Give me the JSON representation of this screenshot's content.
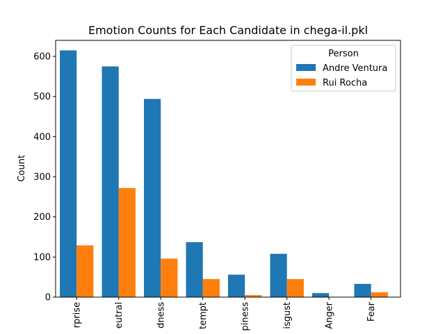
{
  "chart_data": {
    "type": "bar",
    "title": "Emotion Counts for Each Candidate in chega-il.pkl",
    "xlabel": "",
    "ylabel": "Count",
    "ylim": [
      0,
      640
    ],
    "yticks": [
      0,
      100,
      200,
      300,
      400,
      500,
      600
    ],
    "categories": [
      "Surprise",
      "Neutral",
      "Sadness",
      "Contempt",
      "Happiness",
      "Disgust",
      "Anger",
      "Fear"
    ],
    "category_tick_labels": [
      "rprise",
      "eutral",
      "dness",
      "tempt",
      "piness",
      "isgust",
      "Anger",
      "Fear"
    ],
    "legend_title": "Person",
    "legend_position": "top-right",
    "grid": false,
    "series": [
      {
        "name": "Andre Ventura",
        "color": "#1f77b4",
        "values": [
          615,
          575,
          494,
          137,
          56,
          108,
          10,
          33
        ]
      },
      {
        "name": "Rui Rocha",
        "color": "#ff7f0e",
        "values": [
          129,
          272,
          96,
          45,
          5,
          45,
          0,
          12
        ]
      }
    ]
  }
}
